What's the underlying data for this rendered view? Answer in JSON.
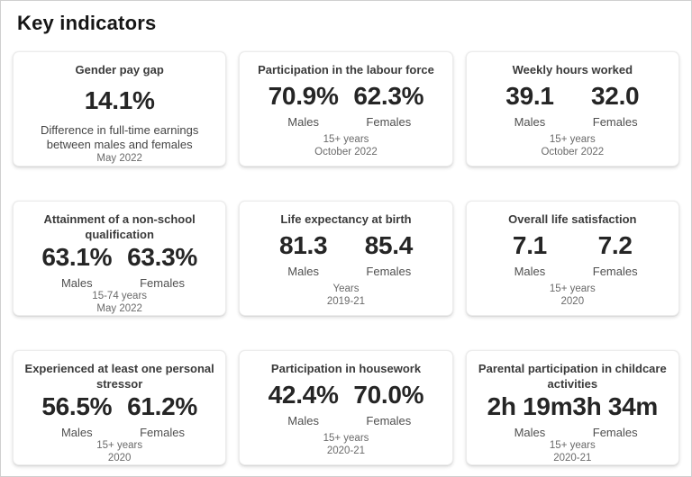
{
  "page": {
    "title": "Key indicators"
  },
  "colors": {
    "text_primary": "#252525",
    "text_secondary": "#4f4f4f",
    "text_note": "#6a6a6a",
    "card_border": "#ececec",
    "frame_border": "#cfcfcf"
  },
  "cards": [
    {
      "title": "Gender pay gap",
      "value": "14.1%",
      "description": "Difference in full-time earnings between males and females",
      "note2": "May 2022"
    },
    {
      "title": "Participation in the labour force",
      "males": {
        "value": "70.9%",
        "label": "Males"
      },
      "females": {
        "value": "62.3%",
        "label": "Females"
      },
      "note1": "15+ years",
      "note2": "October 2022"
    },
    {
      "title": "Weekly hours worked",
      "males": {
        "value": "39.1",
        "label": "Males"
      },
      "females": {
        "value": "32.0",
        "label": "Females"
      },
      "note1": "15+ years",
      "note2": "October 2022"
    },
    {
      "title": "Attainment of a non-school qualification",
      "males": {
        "value": "63.1%",
        "label": "Males"
      },
      "females": {
        "value": "63.3%",
        "label": "Females"
      },
      "note1": "15-74 years",
      "note2": "May 2022"
    },
    {
      "title": "Life expectancy at birth",
      "males": {
        "value": "81.3",
        "label": "Males"
      },
      "females": {
        "value": "85.4",
        "label": "Females"
      },
      "note1": "Years",
      "note2": "2019-21"
    },
    {
      "title": "Overall life satisfaction",
      "males": {
        "value": "7.1",
        "label": "Males"
      },
      "females": {
        "value": "7.2",
        "label": "Females"
      },
      "note1": "15+ years",
      "note2": "2020"
    },
    {
      "title": "Experienced at least one personal stressor",
      "males": {
        "value": "56.5%",
        "label": "Males"
      },
      "females": {
        "value": "61.2%",
        "label": "Females"
      },
      "note1": "15+ years",
      "note2": "2020"
    },
    {
      "title": "Participation in housework",
      "males": {
        "value": "42.4%",
        "label": "Males"
      },
      "females": {
        "value": "70.0%",
        "label": "Females"
      },
      "note1": "15+ years",
      "note2": "2020-21"
    },
    {
      "title": "Parental participation in childcare activities",
      "males": {
        "value": "2h 19m",
        "label": "Males"
      },
      "females": {
        "value": "3h 34m",
        "label": "Females"
      },
      "note1": "15+ years",
      "note2": "2020-21"
    }
  ]
}
